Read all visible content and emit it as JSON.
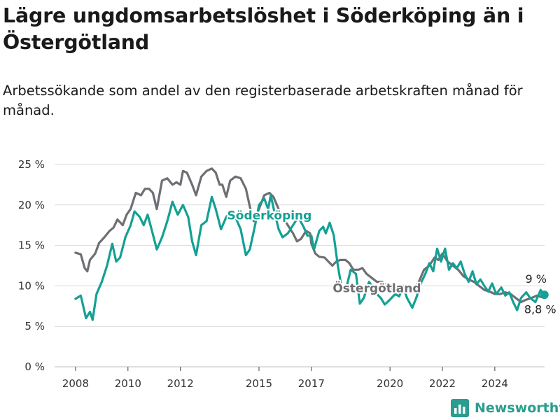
{
  "title": "Lägre ungdomsarbetslöshet i Söderköping än i Östergötland",
  "subtitle": "Arbetssökande som andel av den registerbaserade arbetskraften månad för månad.",
  "brand": {
    "name": "Newsworthy",
    "icon": "newsworthy-logo-icon"
  },
  "colors": {
    "soderkoping": "#14a093",
    "ostergotland": "#6e6e73",
    "grid": "#d9d9d9",
    "text": "#333333"
  },
  "chart_data": {
    "type": "line",
    "title": "Lägre ungdomsarbetslöshet i Söderköping än i Östergötland",
    "ylim": [
      0,
      25
    ],
    "xlim": [
      2007.2,
      2025.9
    ],
    "yticks": [
      0,
      5,
      10,
      15,
      20,
      25
    ],
    "ytick_labels": [
      "0 %",
      "5 %",
      "10 %",
      "15 %",
      "20 %",
      "25 %"
    ],
    "xticks": [
      2008,
      2010,
      2012,
      2015,
      2017,
      2020,
      2022,
      2024
    ],
    "xtick_labels": [
      "2008",
      "2010",
      "2012",
      "2015",
      "2017",
      "2020",
      "2022",
      "2024"
    ],
    "grid": true,
    "series": [
      {
        "name": "Söderköping",
        "end_label": "9 %",
        "points": [
          [
            2008.0,
            8.4
          ],
          [
            2008.2,
            8.8
          ],
          [
            2008.4,
            6.0
          ],
          [
            2008.55,
            6.8
          ],
          [
            2008.65,
            5.8
          ],
          [
            2008.8,
            9.0
          ],
          [
            2009.0,
            10.5
          ],
          [
            2009.2,
            12.5
          ],
          [
            2009.4,
            15.2
          ],
          [
            2009.55,
            13.0
          ],
          [
            2009.7,
            13.5
          ],
          [
            2009.9,
            16.0
          ],
          [
            2010.1,
            17.5
          ],
          [
            2010.25,
            19.2
          ],
          [
            2010.45,
            18.5
          ],
          [
            2010.6,
            17.5
          ],
          [
            2010.75,
            18.8
          ],
          [
            2010.9,
            17.0
          ],
          [
            2011.1,
            14.5
          ],
          [
            2011.3,
            16.0
          ],
          [
            2011.5,
            18.0
          ],
          [
            2011.7,
            20.4
          ],
          [
            2011.9,
            18.8
          ],
          [
            2012.1,
            20.0
          ],
          [
            2012.3,
            18.5
          ],
          [
            2012.45,
            15.5
          ],
          [
            2012.6,
            13.8
          ],
          [
            2012.8,
            17.5
          ],
          [
            2013.0,
            18.0
          ],
          [
            2013.2,
            21.0
          ],
          [
            2013.35,
            19.5
          ],
          [
            2013.55,
            17.0
          ],
          [
            2013.75,
            18.5
          ],
          [
            2013.95,
            19.2
          ],
          [
            2014.1,
            18.5
          ],
          [
            2014.3,
            17.0
          ],
          [
            2014.5,
            13.8
          ],
          [
            2014.65,
            14.5
          ],
          [
            2014.85,
            17.5
          ],
          [
            2015.0,
            20.0
          ],
          [
            2015.2,
            20.8
          ],
          [
            2015.35,
            19.5
          ],
          [
            2015.45,
            21.2
          ],
          [
            2015.6,
            19.0
          ],
          [
            2015.75,
            17.0
          ],
          [
            2015.9,
            16.0
          ],
          [
            2016.1,
            16.5
          ],
          [
            2016.3,
            17.5
          ],
          [
            2016.5,
            18.5
          ],
          [
            2016.7,
            17.3
          ],
          [
            2016.85,
            16.2
          ],
          [
            2017.0,
            16.2
          ],
          [
            2017.1,
            14.5
          ],
          [
            2017.3,
            16.8
          ],
          [
            2017.45,
            17.3
          ],
          [
            2017.55,
            16.5
          ],
          [
            2017.7,
            17.8
          ],
          [
            2017.85,
            16.3
          ],
          [
            2018.0,
            12.7
          ],
          [
            2018.15,
            9.8
          ],
          [
            2018.3,
            9.3
          ],
          [
            2018.5,
            12.0
          ],
          [
            2018.7,
            11.5
          ],
          [
            2018.85,
            7.8
          ],
          [
            2019.0,
            8.5
          ],
          [
            2019.2,
            10.5
          ],
          [
            2019.35,
            9.8
          ],
          [
            2019.5,
            9.0
          ],
          [
            2019.65,
            8.5
          ],
          [
            2019.8,
            7.7
          ],
          [
            2020.0,
            8.3
          ],
          [
            2020.2,
            9.0
          ],
          [
            2020.35,
            8.7
          ],
          [
            2020.5,
            9.8
          ],
          [
            2020.65,
            8.5
          ],
          [
            2020.85,
            7.3
          ],
          [
            2021.0,
            8.5
          ],
          [
            2021.2,
            10.5
          ],
          [
            2021.35,
            11.5
          ],
          [
            2021.5,
            12.8
          ],
          [
            2021.65,
            11.8
          ],
          [
            2021.8,
            14.6
          ],
          [
            2021.95,
            13.0
          ],
          [
            2022.1,
            14.6
          ],
          [
            2022.25,
            12.0
          ],
          [
            2022.4,
            12.8
          ],
          [
            2022.55,
            12.2
          ],
          [
            2022.7,
            13.0
          ],
          [
            2022.85,
            11.5
          ],
          [
            2023.0,
            10.5
          ],
          [
            2023.15,
            11.8
          ],
          [
            2023.3,
            10.2
          ],
          [
            2023.45,
            10.8
          ],
          [
            2023.6,
            10.0
          ],
          [
            2023.75,
            9.3
          ],
          [
            2023.9,
            10.3
          ],
          [
            2024.05,
            9.0
          ],
          [
            2024.25,
            9.8
          ],
          [
            2024.4,
            8.8
          ],
          [
            2024.55,
            9.2
          ],
          [
            2024.7,
            8.0
          ],
          [
            2024.85,
            7.0
          ],
          [
            2025.0,
            8.5
          ],
          [
            2025.2,
            9.2
          ],
          [
            2025.35,
            8.5
          ],
          [
            2025.55,
            8.0
          ],
          [
            2025.75,
            9.5
          ],
          [
            2025.85,
            9.0
          ],
          [
            2026.0,
            8.9
          ]
        ]
      },
      {
        "name": "Östergötland",
        "end_label": "8,8 %",
        "points": [
          [
            2008.0,
            14.1
          ],
          [
            2008.2,
            13.9
          ],
          [
            2008.35,
            12.2
          ],
          [
            2008.45,
            11.8
          ],
          [
            2008.55,
            13.2
          ],
          [
            2008.75,
            14.0
          ],
          [
            2008.9,
            15.3
          ],
          [
            2009.1,
            16.0
          ],
          [
            2009.3,
            16.8
          ],
          [
            2009.45,
            17.2
          ],
          [
            2009.6,
            18.2
          ],
          [
            2009.8,
            17.5
          ],
          [
            2009.95,
            18.8
          ],
          [
            2010.1,
            19.5
          ],
          [
            2010.3,
            21.5
          ],
          [
            2010.5,
            21.2
          ],
          [
            2010.65,
            22.0
          ],
          [
            2010.8,
            22.0
          ],
          [
            2010.95,
            21.5
          ],
          [
            2011.1,
            19.5
          ],
          [
            2011.3,
            23.0
          ],
          [
            2011.5,
            23.3
          ],
          [
            2011.7,
            22.5
          ],
          [
            2011.85,
            22.8
          ],
          [
            2012.0,
            22.5
          ],
          [
            2012.1,
            24.2
          ],
          [
            2012.25,
            24.0
          ],
          [
            2012.45,
            22.5
          ],
          [
            2012.6,
            21.2
          ],
          [
            2012.8,
            23.5
          ],
          [
            2013.0,
            24.2
          ],
          [
            2013.2,
            24.5
          ],
          [
            2013.35,
            24.0
          ],
          [
            2013.5,
            22.5
          ],
          [
            2013.6,
            22.5
          ],
          [
            2013.75,
            21.0
          ],
          [
            2013.9,
            23.0
          ],
          [
            2014.1,
            23.5
          ],
          [
            2014.3,
            23.3
          ],
          [
            2014.5,
            22.0
          ],
          [
            2014.65,
            19.8
          ],
          [
            2014.8,
            18.0
          ],
          [
            2015.0,
            19.5
          ],
          [
            2015.2,
            21.2
          ],
          [
            2015.4,
            21.5
          ],
          [
            2015.55,
            21.0
          ],
          [
            2015.75,
            19.5
          ],
          [
            2015.9,
            18.5
          ],
          [
            2016.1,
            17.5
          ],
          [
            2016.3,
            16.5
          ],
          [
            2016.45,
            15.5
          ],
          [
            2016.6,
            15.8
          ],
          [
            2016.8,
            16.8
          ],
          [
            2016.95,
            16.5
          ],
          [
            2017.0,
            15.2
          ],
          [
            2017.15,
            14.0
          ],
          [
            2017.3,
            13.6
          ],
          [
            2017.5,
            13.5
          ],
          [
            2017.65,
            13.0
          ],
          [
            2017.8,
            12.5
          ],
          [
            2017.95,
            13.0
          ],
          [
            2018.1,
            13.2
          ],
          [
            2018.3,
            13.2
          ],
          [
            2018.45,
            12.8
          ],
          [
            2018.6,
            12.0
          ],
          [
            2018.8,
            12.0
          ],
          [
            2018.95,
            12.2
          ],
          [
            2019.1,
            11.5
          ],
          [
            2019.3,
            11.0
          ],
          [
            2019.5,
            10.5
          ],
          [
            2019.7,
            10.5
          ],
          [
            2019.9,
            10.0
          ],
          [
            2020.1,
            9.5
          ],
          [
            2020.3,
            9.8
          ],
          [
            2020.5,
            10.0
          ],
          [
            2020.7,
            9.5
          ],
          [
            2020.9,
            9.6
          ],
          [
            2021.1,
            10.5
          ],
          [
            2021.3,
            12.0
          ],
          [
            2021.5,
            12.5
          ],
          [
            2021.7,
            13.5
          ],
          [
            2021.85,
            13.2
          ],
          [
            2022.0,
            14.0
          ],
          [
            2022.2,
            13.0
          ],
          [
            2022.4,
            12.5
          ],
          [
            2022.6,
            12.0
          ],
          [
            2022.8,
            11.2
          ],
          [
            2023.0,
            10.8
          ],
          [
            2023.2,
            10.5
          ],
          [
            2023.4,
            10.0
          ],
          [
            2023.6,
            9.5
          ],
          [
            2023.8,
            9.3
          ],
          [
            2024.0,
            9.0
          ],
          [
            2024.2,
            9.0
          ],
          [
            2024.4,
            9.2
          ],
          [
            2024.6,
            9.0
          ],
          [
            2024.8,
            8.5
          ],
          [
            2025.0,
            8.0
          ],
          [
            2025.2,
            8.3
          ],
          [
            2025.4,
            8.5
          ],
          [
            2025.6,
            8.8
          ],
          [
            2025.8,
            8.6
          ],
          [
            2026.0,
            8.8
          ]
        ]
      }
    ],
    "annotations": [
      {
        "text": "Söderköping",
        "series": "Söderköping",
        "x": 2015.4,
        "y": 18.2
      },
      {
        "text": "Östergötland",
        "series": "Östergötland",
        "x": 2019.5,
        "y": 9.2
      }
    ]
  }
}
